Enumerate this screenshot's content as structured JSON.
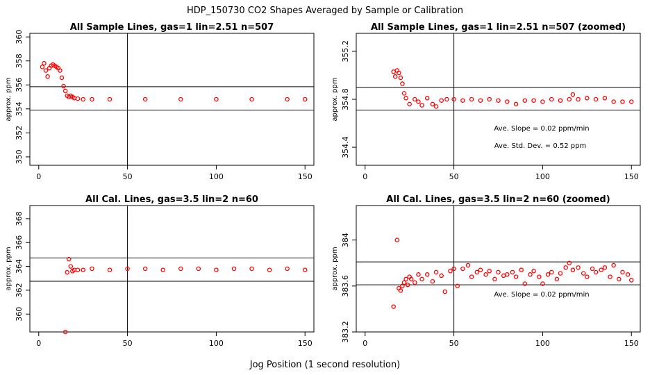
{
  "figure": {
    "title": "HDP_150730  CO2 Shapes Averaged by Sample or Calibration",
    "xlabel": "Jog Position (1 second resolution)"
  },
  "chart_data": [
    {
      "type": "scatter",
      "title": "All Sample Lines, gas=1 lin=2.51 n=507",
      "xlabel": "",
      "ylabel": "approx. ppm",
      "xlim": [
        -5,
        155
      ],
      "ylim": [
        349.3,
        360.3
      ],
      "xticks": [
        0,
        50,
        100,
        150
      ],
      "yticks": [
        350,
        352,
        354,
        356,
        358,
        360
      ],
      "ref_lines": {
        "v": [
          50
        ],
        "h": [
          353.9,
          355.85
        ]
      },
      "notes": [],
      "point_color": "#ff0000",
      "series": [
        {
          "x": [
            2,
            3,
            4,
            5,
            6,
            7,
            8,
            9,
            10,
            11,
            12,
            13,
            14,
            15,
            16,
            17,
            18,
            19,
            20,
            22,
            25,
            30,
            40,
            60,
            80,
            100,
            120,
            140,
            150
          ],
          "y": [
            357.5,
            357.8,
            357.2,
            356.7,
            357.4,
            357.6,
            357.7,
            357.6,
            357.5,
            357.4,
            357.2,
            356.6,
            355.9,
            355.5,
            355.1,
            355.0,
            355.1,
            355.0,
            354.9,
            354.85,
            354.8,
            354.8,
            354.8,
            354.8,
            354.8,
            354.8,
            354.8,
            354.8,
            354.8
          ]
        }
      ]
    },
    {
      "type": "scatter",
      "title": "All Sample Lines, gas=1 lin=2.51 n=507 (zoomed)",
      "xlabel": "",
      "ylabel": "approx. ppm",
      "xlim": [
        -5,
        155
      ],
      "ylim": [
        354.25,
        355.35
      ],
      "xticks": [
        0,
        50,
        100,
        150
      ],
      "yticks": [
        354.4,
        354.8,
        355.2
      ],
      "ref_lines": {
        "v": [
          50
        ],
        "h": [
          354.71,
          354.9
        ]
      },
      "notes": [
        "Ave. Slope =  0.02  ppm/min",
        "Ave. Std. Dev. =  0.52  ppm"
      ],
      "point_color": "#ff0000",
      "series": [
        {
          "x": [
            16,
            17,
            18,
            19,
            20,
            21,
            22,
            23,
            25,
            28,
            30,
            32,
            35,
            38,
            40,
            43,
            46,
            50,
            55,
            60,
            65,
            70,
            75,
            80,
            85,
            90,
            95,
            100,
            105,
            110,
            115,
            117,
            120,
            125,
            130,
            135,
            140,
            145,
            150
          ],
          "y": [
            355.03,
            354.99,
            355.04,
            355.02,
            354.98,
            354.93,
            354.85,
            354.81,
            354.76,
            354.8,
            354.78,
            354.75,
            354.81,
            354.76,
            354.74,
            354.79,
            354.8,
            354.8,
            354.79,
            354.8,
            354.79,
            354.8,
            354.79,
            354.78,
            354.76,
            354.79,
            354.79,
            354.78,
            354.8,
            354.79,
            354.8,
            354.84,
            354.8,
            354.81,
            354.8,
            354.81,
            354.78,
            354.78,
            354.78
          ]
        }
      ]
    },
    {
      "type": "scatter",
      "title": "All Cal. Lines, gas=3.5 lin=2 n=60",
      "xlabel": "",
      "ylabel": "approx. ppm",
      "xlim": [
        -5,
        155
      ],
      "ylim": [
        358.5,
        369.1
      ],
      "xticks": [
        0,
        50,
        100,
        150
      ],
      "yticks": [
        360,
        362,
        364,
        366,
        368
      ],
      "ref_lines": {
        "v": [
          50
        ],
        "h": [
          362.75,
          364.7
        ]
      },
      "notes": [],
      "point_color": "#ff0000",
      "series": [
        {
          "x": [
            15,
            16,
            17,
            18,
            19,
            20,
            22,
            25,
            30,
            40,
            50,
            60,
            70,
            80,
            90,
            100,
            110,
            120,
            130,
            140,
            150
          ],
          "y": [
            358.5,
            363.5,
            364.6,
            364.0,
            363.6,
            363.7,
            363.7,
            363.7,
            363.8,
            363.7,
            363.8,
            363.8,
            363.7,
            363.8,
            363.8,
            363.7,
            363.8,
            363.8,
            363.7,
            363.8,
            363.7
          ]
        }
      ]
    },
    {
      "type": "scatter",
      "title": "All Cal. Lines, gas=3.5 lin=2 n=60 (zoomed)",
      "xlabel": "",
      "ylabel": "approx. ppm",
      "xlim": [
        -5,
        155
      ],
      "ylim": [
        383.2,
        384.3
      ],
      "xticks": [
        0,
        50,
        100,
        150
      ],
      "yticks": [
        383.2,
        383.6,
        384.0
      ],
      "ref_lines": {
        "v": [
          50
        ],
        "h": [
          383.61,
          383.81
        ]
      },
      "notes": [
        "Ave. Slope =  0.02  ppm/min"
      ],
      "point_color": "#ff0000",
      "series": [
        {
          "x": [
            16,
            18,
            19,
            20,
            21,
            22,
            23,
            24,
            25,
            26,
            28,
            30,
            32,
            35,
            38,
            40,
            43,
            45,
            48,
            50,
            52,
            55,
            58,
            60,
            63,
            65,
            68,
            70,
            73,
            75,
            78,
            80,
            83,
            85,
            88,
            90,
            93,
            95,
            98,
            100,
            103,
            105,
            108,
            110,
            113,
            115,
            117,
            120,
            123,
            125,
            128,
            130,
            133,
            135,
            138,
            140,
            143,
            145,
            148,
            150
          ],
          "y": [
            383.42,
            384.0,
            383.58,
            383.56,
            383.6,
            383.63,
            383.66,
            383.61,
            383.68,
            383.66,
            383.63,
            383.7,
            383.66,
            383.7,
            383.64,
            383.72,
            383.69,
            383.55,
            383.73,
            383.75,
            383.6,
            383.75,
            383.78,
            383.68,
            383.72,
            383.74,
            383.7,
            383.73,
            383.66,
            383.72,
            383.69,
            383.7,
            383.72,
            383.68,
            383.74,
            383.62,
            383.7,
            383.73,
            383.68,
            383.62,
            383.7,
            383.72,
            383.66,
            383.71,
            383.76,
            383.8,
            383.74,
            383.76,
            383.71,
            383.68,
            383.75,
            383.72,
            383.74,
            383.76,
            383.68,
            383.78,
            383.66,
            383.72,
            383.7,
            383.65
          ]
        }
      ]
    }
  ]
}
